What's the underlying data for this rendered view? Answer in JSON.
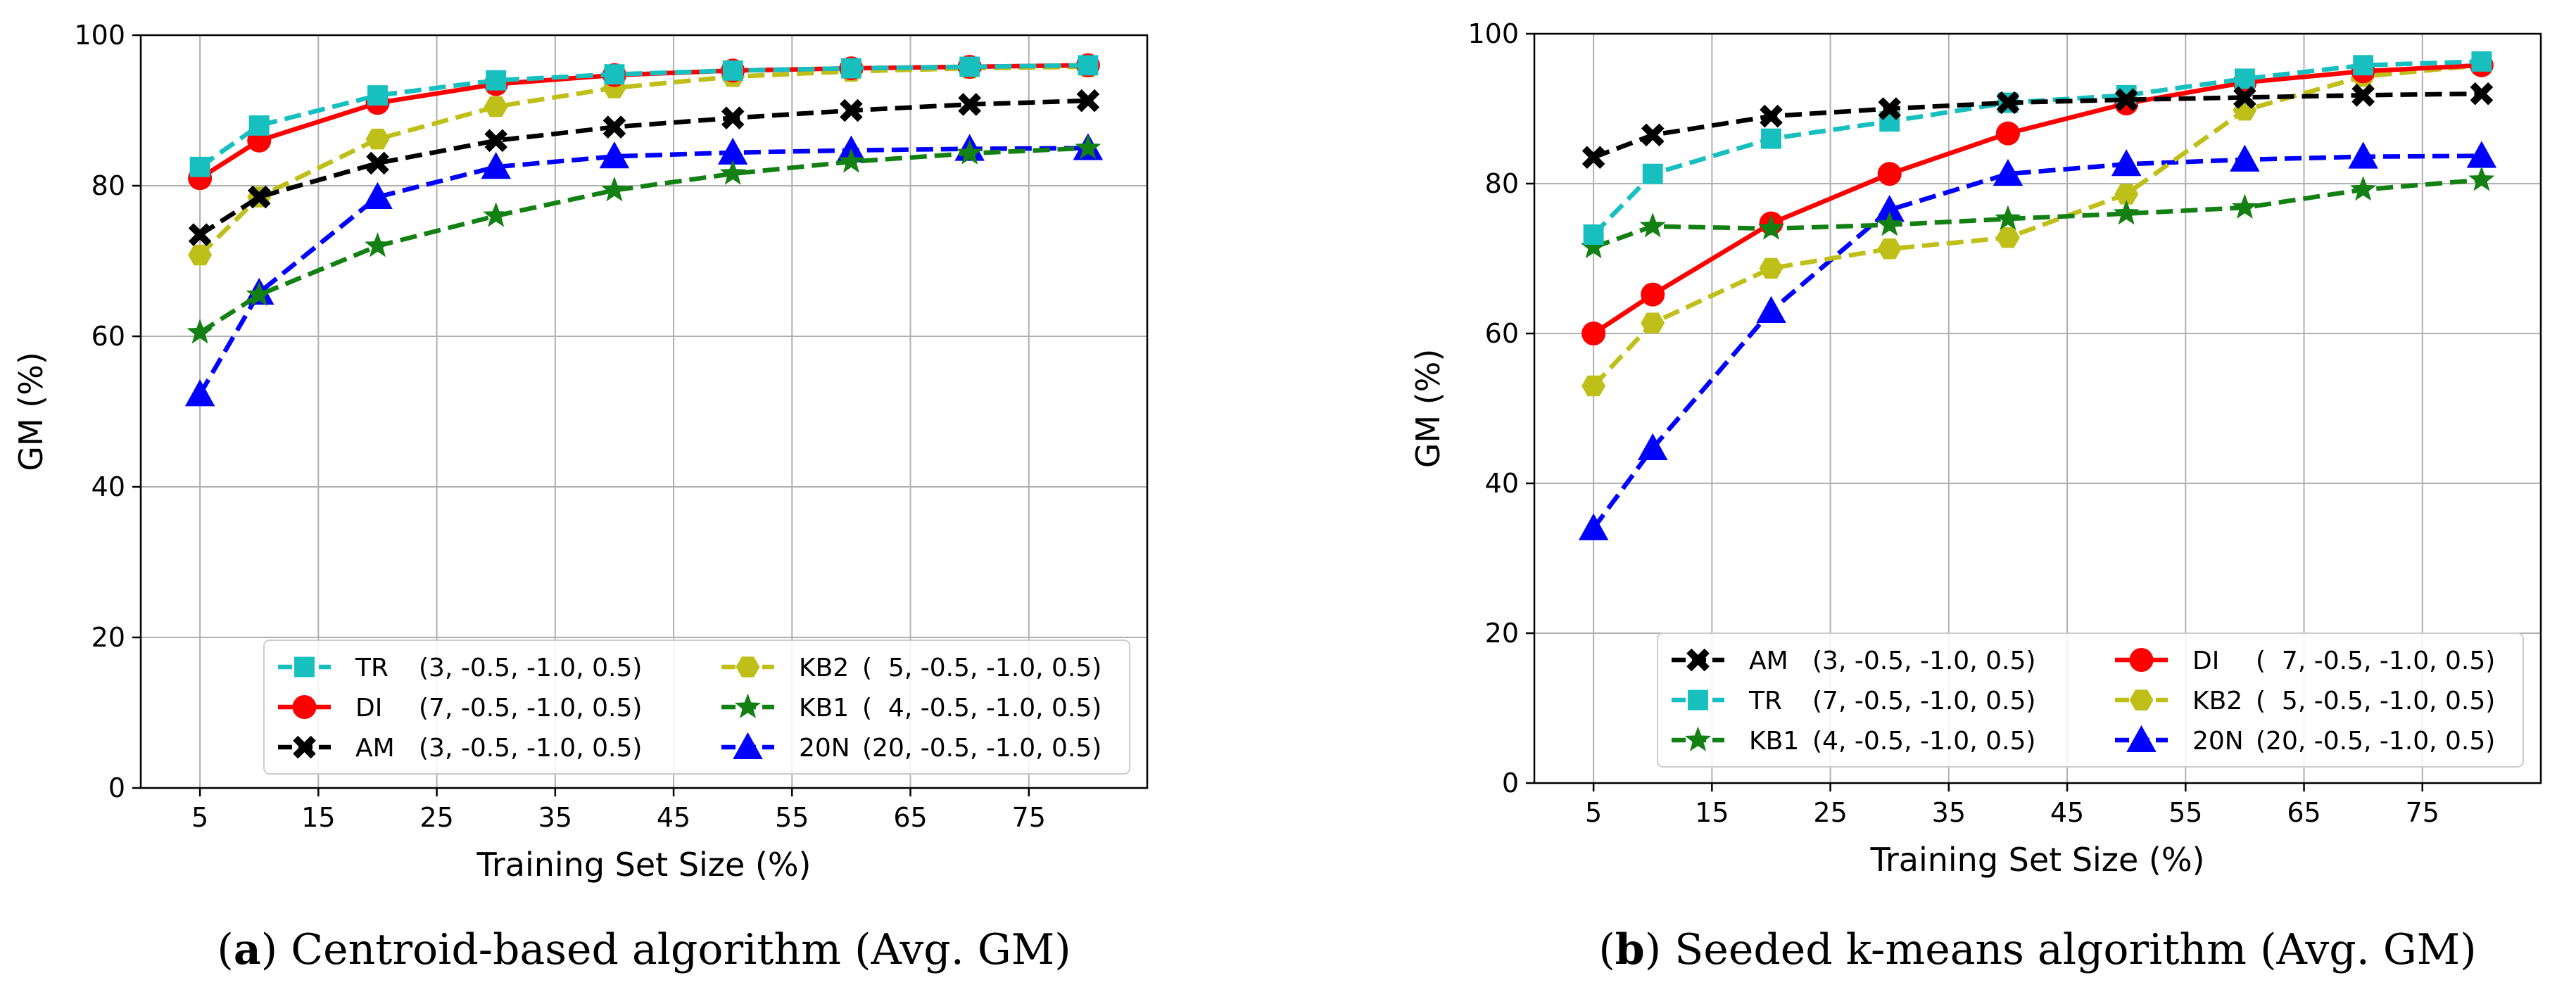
{
  "chart_data": [
    {
      "type": "line",
      "caption_letter": "a",
      "caption_text": "Centroid-based algorithm (Avg. GM)",
      "xlabel": "Training Set Size (%)",
      "ylabel": "GM (%)",
      "xlim": [
        0,
        85
      ],
      "ylim": [
        0,
        100
      ],
      "xticks": [
        5,
        15,
        25,
        35,
        45,
        55,
        65,
        75
      ],
      "yticks": [
        0,
        20,
        40,
        60,
        80,
        100
      ],
      "grid": true,
      "legend_position": "bottom-right",
      "legend_columns": 2,
      "x": [
        5,
        10,
        20,
        30,
        40,
        50,
        60,
        70,
        80
      ],
      "series": [
        {
          "name": "TR",
          "params": "(3, -0.5, -1.0, 0.5)",
          "color": "#17bfbf",
          "linestyle": "dashed",
          "marker": "square",
          "values": [
            82.5,
            88,
            92,
            94,
            94.8,
            95.3,
            95.6,
            95.8,
            96
          ]
        },
        {
          "name": "DI",
          "params": "(7, -0.5, -1.0, 0.5)",
          "color": "#ff0000",
          "linestyle": "solid",
          "marker": "circle",
          "values": [
            81,
            86,
            91,
            93.5,
            94.7,
            95.3,
            95.6,
            95.8,
            96
          ]
        },
        {
          "name": "AM",
          "params": "(3, -0.5, -1.0, 0.5)",
          "color": "#000000",
          "linestyle": "dashed",
          "marker": "x",
          "values": [
            73.5,
            78.5,
            83,
            86,
            87.8,
            89,
            90,
            90.8,
            91.3
          ]
        },
        {
          "name": "KB2",
          "params": "(  5, -0.5, -1.0, 0.5)",
          "color": "#bfbf1a",
          "linestyle": "dashed",
          "marker": "hexagon",
          "values": [
            70.8,
            78.5,
            86.2,
            90.5,
            93,
            94.5,
            95.2,
            95.6,
            95.8
          ]
        },
        {
          "name": "KB1",
          "params": "(  4, -0.5, -1.0, 0.5)",
          "color": "#138013",
          "linestyle": "dashed",
          "marker": "star",
          "values": [
            60.5,
            65.5,
            72,
            76,
            79.4,
            81.6,
            83.2,
            84.3,
            85
          ]
        },
        {
          "name": "20N",
          "params": "(20, -0.5, -1.0, 0.5)",
          "color": "#0000ff",
          "linestyle": "dashed",
          "marker": "triangle",
          "values": [
            52.3,
            65.8,
            78.5,
            82.5,
            83.9,
            84.4,
            84.7,
            84.9,
            85
          ]
        }
      ]
    },
    {
      "type": "line",
      "caption_letter": "b",
      "caption_text": "Seeded k-means algorithm (Avg. GM)",
      "xlabel": "Training Set Size (%)",
      "ylabel": "GM (%)",
      "xlim": [
        0,
        85
      ],
      "ylim": [
        0,
        100
      ],
      "xticks": [
        5,
        15,
        25,
        35,
        45,
        55,
        65,
        75
      ],
      "yticks": [
        0,
        20,
        40,
        60,
        80,
        100
      ],
      "grid": true,
      "legend_position": "bottom-right",
      "legend_columns": 2,
      "x": [
        5,
        10,
        20,
        30,
        40,
        50,
        60,
        70,
        80
      ],
      "series": [
        {
          "name": "AM",
          "params": "(3, -0.5, -1.0, 0.5)",
          "color": "#000000",
          "linestyle": "dashed",
          "marker": "x",
          "values": [
            83.5,
            86.5,
            89,
            90,
            90.8,
            91.2,
            91.5,
            91.8,
            92
          ]
        },
        {
          "name": "TR",
          "params": "(7, -0.5, -1.0, 0.5)",
          "color": "#17bfbf",
          "linestyle": "dashed",
          "marker": "square",
          "values": [
            73.2,
            81.3,
            86,
            88.3,
            90.8,
            91.8,
            94,
            95.8,
            96.3
          ]
        },
        {
          "name": "KB1",
          "params": "(4, -0.5, -1.0, 0.5)",
          "color": "#138013",
          "linestyle": "dashed",
          "marker": "star",
          "values": [
            71.5,
            74.3,
            74,
            74.5,
            75.3,
            76,
            76.8,
            79.2,
            80.5
          ]
        },
        {
          "name": "DI",
          "params": "(  7, -0.5, -1.0, 0.5)",
          "color": "#ff0000",
          "linestyle": "solid",
          "marker": "circle",
          "values": [
            60,
            65.2,
            74.7,
            81.3,
            86.7,
            90.7,
            93.5,
            95,
            95.8
          ]
        },
        {
          "name": "KB2",
          "params": "(  5, -0.5, -1.0, 0.5)",
          "color": "#bfbf1a",
          "linestyle": "dashed",
          "marker": "hexagon",
          "values": [
            53,
            61.4,
            68.7,
            71.3,
            72.8,
            78.6,
            89.8,
            94.3,
            95.8
          ]
        },
        {
          "name": "20N",
          "params": "(20, -0.5, -1.0, 0.5)",
          "color": "#0000ff",
          "linestyle": "dashed",
          "marker": "triangle",
          "values": [
            34,
            44.7,
            63,
            76.5,
            81.3,
            82.6,
            83.2,
            83.6,
            83.7
          ]
        }
      ]
    }
  ]
}
